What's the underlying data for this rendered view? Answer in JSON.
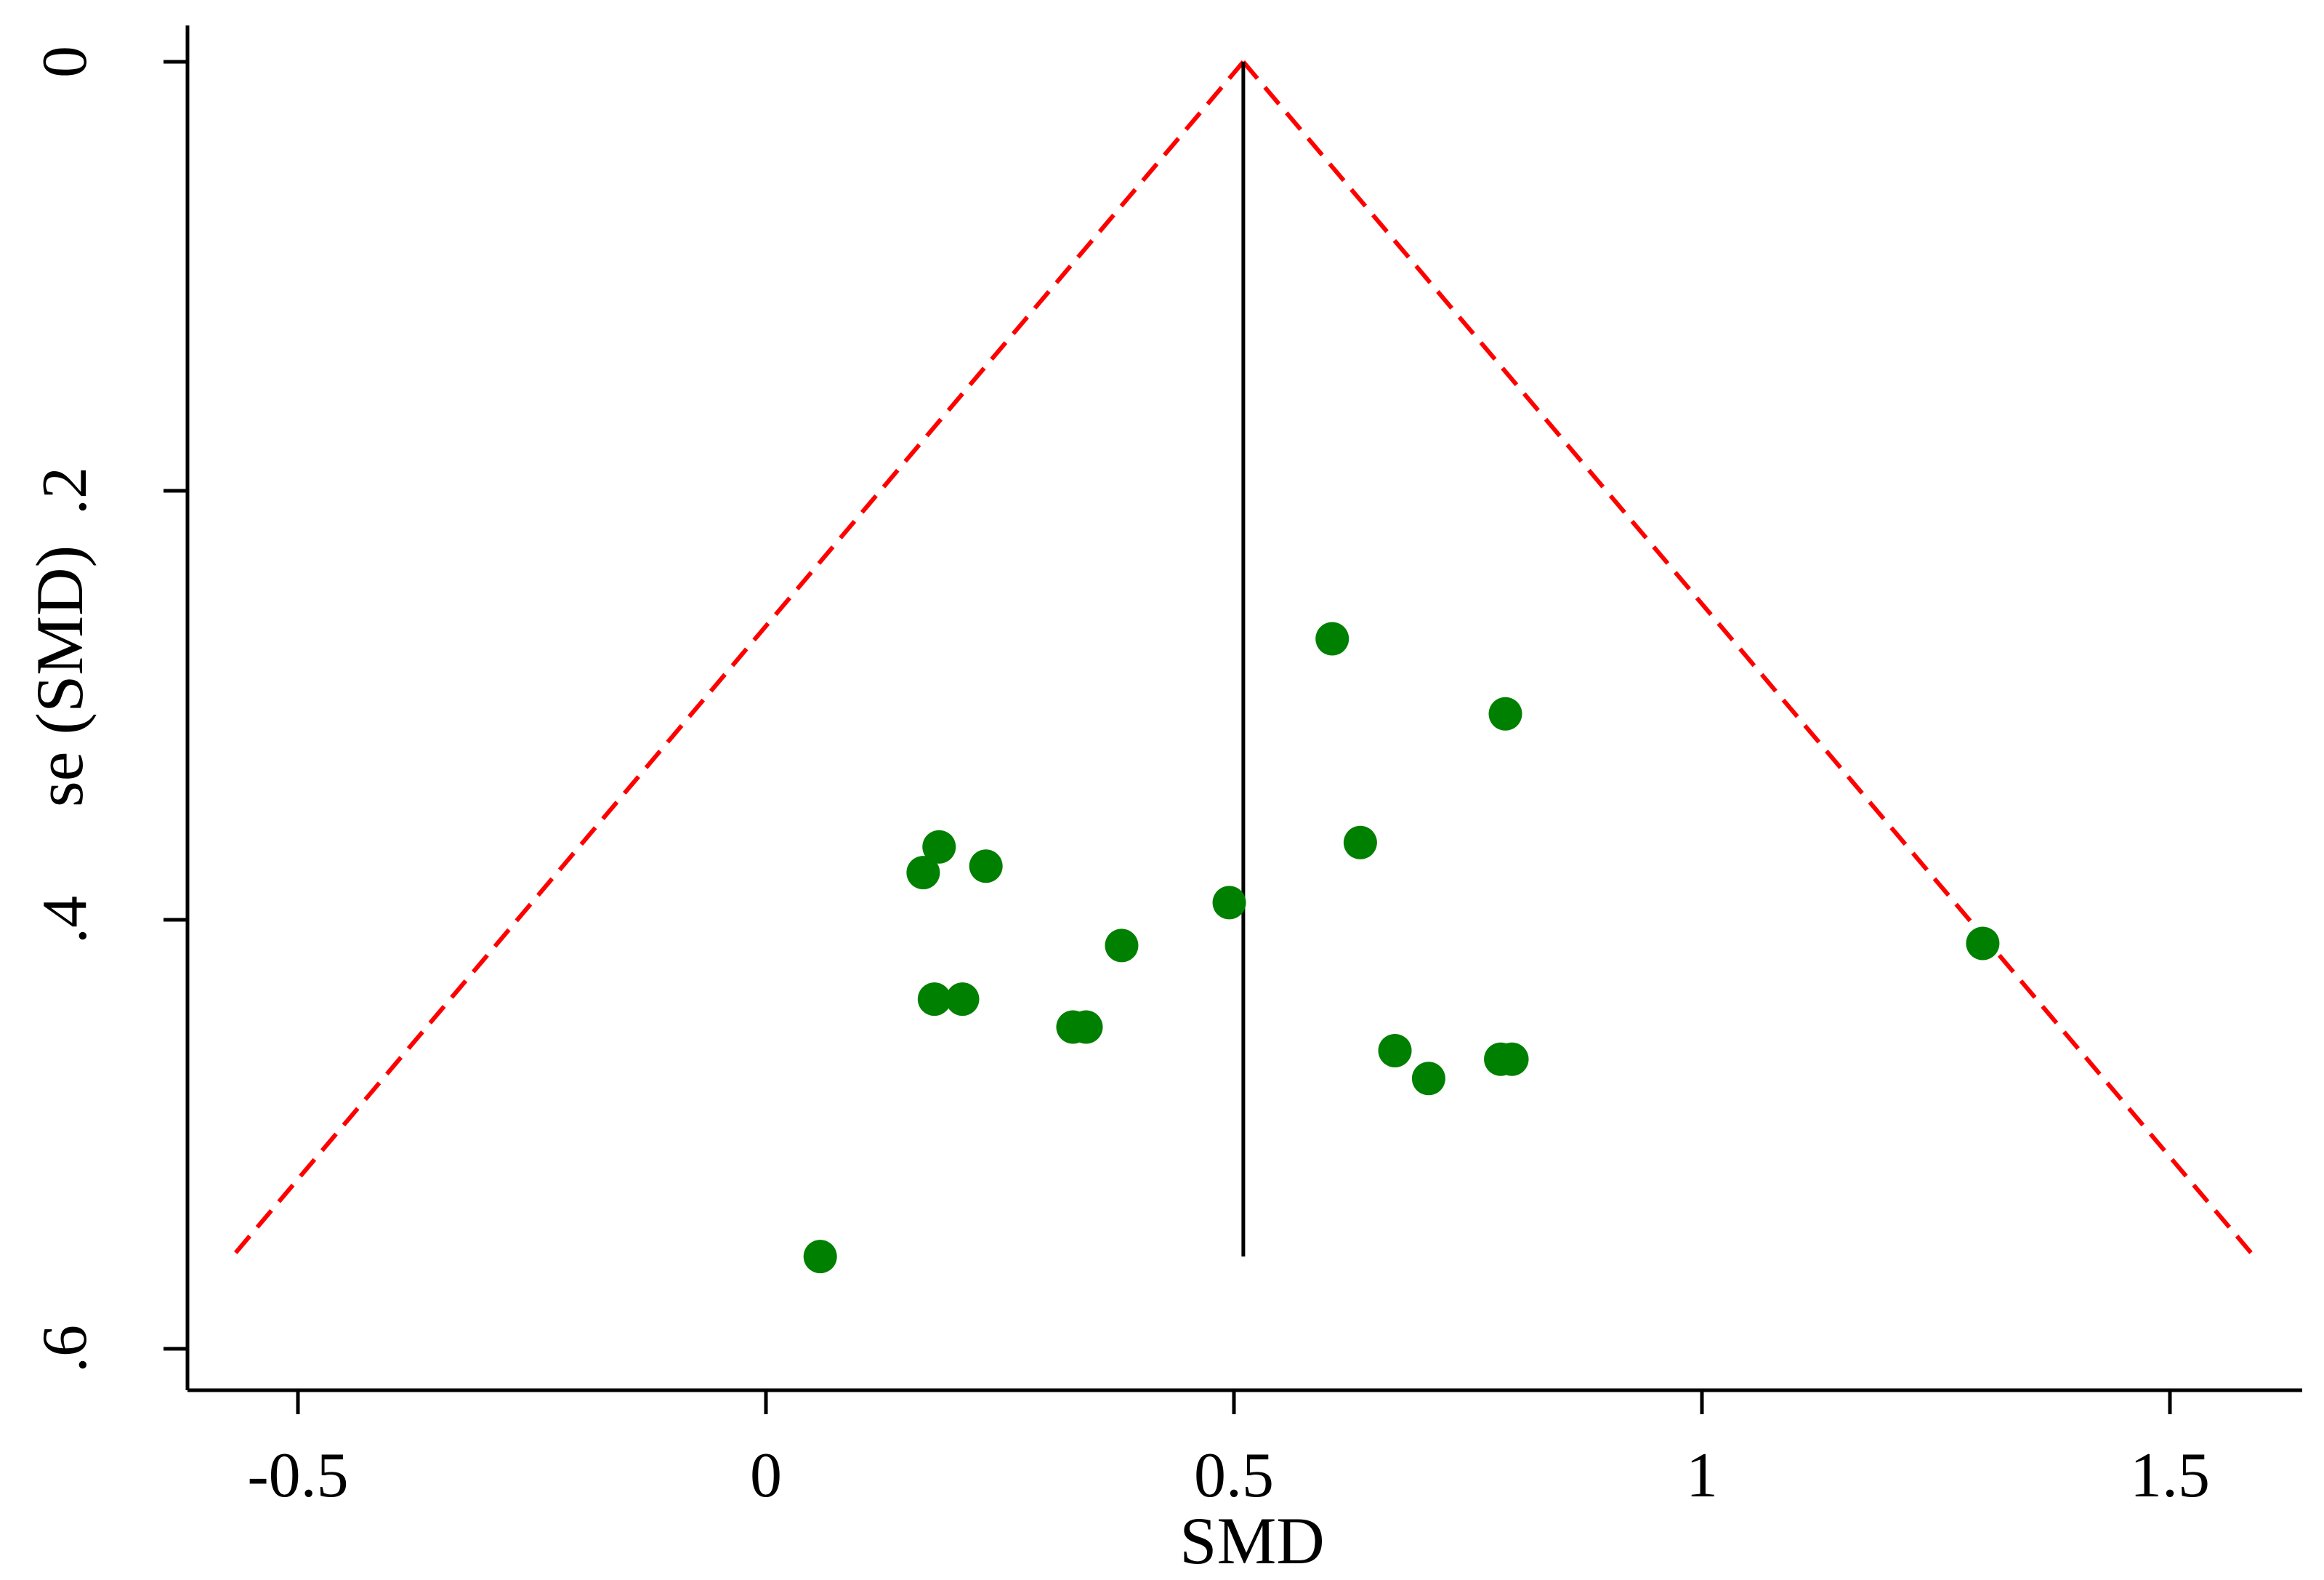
{
  "chart_data": {
    "type": "scatter",
    "subtype": "funnel-plot",
    "title": "",
    "xlabel": "SMD",
    "ylabel": "se (SMD)",
    "xlim": [
      -0.62,
      1.65
    ],
    "ylim": [
      0,
      0.62
    ],
    "y_reversed": true,
    "grid": false,
    "x_ticks": [
      -0.5,
      0,
      0.5,
      1,
      1.5
    ],
    "x_tick_labels": [
      "-0.5",
      "0",
      "0.5",
      "1",
      "1.5"
    ],
    "y_ticks": [
      0,
      0.2,
      0.4,
      0.6
    ],
    "y_tick_labels": [
      "0",
      ".2",
      ".4",
      ".6"
    ],
    "pooled_estimate": 0.51,
    "pooled_line_se_range": [
      0,
      0.557
    ],
    "funnel_limits": {
      "apex": [
        0.51,
        0
      ],
      "left_end": [
        -0.57,
        0.557
      ],
      "right_end": [
        1.59,
        0.557
      ],
      "color": "#ff0000",
      "style": "dashed"
    },
    "point_color": "#008000",
    "points": [
      {
        "x": 0.605,
        "y": 0.269
      },
      {
        "x": 0.79,
        "y": 0.304
      },
      {
        "x": 0.635,
        "y": 0.364
      },
      {
        "x": 0.185,
        "y": 0.366
      },
      {
        "x": 0.235,
        "y": 0.375
      },
      {
        "x": 0.168,
        "y": 0.378
      },
      {
        "x": 0.495,
        "y": 0.392
      },
      {
        "x": 0.38,
        "y": 0.412
      },
      {
        "x": 1.3,
        "y": 0.411
      },
      {
        "x": 0.18,
        "y": 0.437
      },
      {
        "x": 0.21,
        "y": 0.437
      },
      {
        "x": 0.328,
        "y": 0.45
      },
      {
        "x": 0.342,
        "y": 0.45
      },
      {
        "x": 0.672,
        "y": 0.461
      },
      {
        "x": 0.785,
        "y": 0.465
      },
      {
        "x": 0.797,
        "y": 0.465
      },
      {
        "x": 0.708,
        "y": 0.474
      },
      {
        "x": 0.058,
        "y": 0.557
      }
    ]
  }
}
